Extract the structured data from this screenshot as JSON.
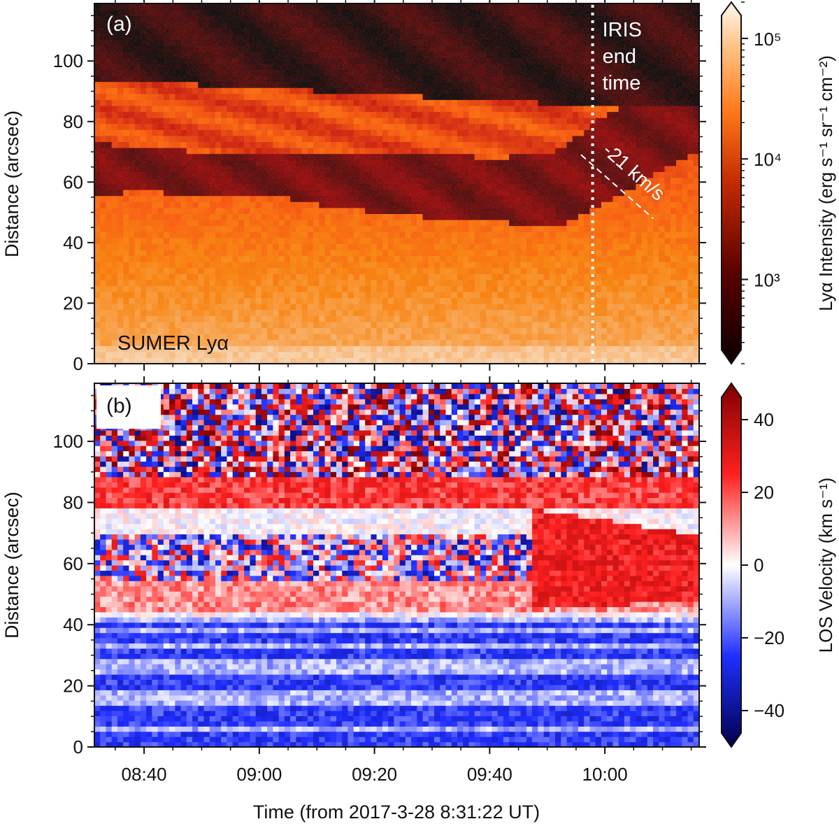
{
  "chart_data": [
    {
      "panel": "a",
      "type": "heatmap",
      "panel_label": "(a)",
      "inset_label": "SUMER Lyα",
      "ylabel": "Distance (arcsec)",
      "ylim": [
        0,
        119
      ],
      "yticks": [
        0,
        20,
        40,
        60,
        80,
        100
      ],
      "xlim_minutes": [
        0,
        105
      ],
      "x_ticks_minutes": [
        8.63,
        28.63,
        48.63,
        68.63,
        88.63
      ],
      "colorbar": {
        "label": "Lyα Intensity (erg s⁻¹ sr⁻¹ cm⁻²)",
        "scale": "log",
        "range": [
          200,
          200000
        ],
        "ticks": [
          {
            "value": 1000,
            "label": "10³"
          },
          {
            "value": 10000,
            "label": "10⁴"
          },
          {
            "value": 100000,
            "label": "10⁵"
          }
        ],
        "colormap": "gist_heat",
        "extend": "both"
      },
      "dark_band_boundaries": {
        "time_minutes": [
          0,
          10,
          20,
          30,
          40,
          50,
          60,
          70,
          80,
          90,
          100,
          105
        ],
        "upper_band_bottom": [
          94,
          93,
          92,
          91,
          90,
          89,
          88,
          87,
          86,
          86,
          86,
          86
        ],
        "mid_band_top": [
          73,
          71,
          70,
          70,
          70,
          70,
          69,
          68,
          70,
          84,
          86,
          86
        ],
        "mid_band_bottom": [
          56,
          57,
          55,
          56,
          52,
          50,
          48,
          47,
          45,
          55,
          65,
          70
        ]
      },
      "annotations": [
        {
          "type": "vline",
          "x_minutes": 86.5,
          "style": "dotted",
          "label_lines": [
            "IRIS",
            "end",
            "time"
          ]
        },
        {
          "type": "dashed-line",
          "from": {
            "x_minutes": 84.5,
            "y": 69
          },
          "to": {
            "x_minutes": 97,
            "y": 48
          },
          "label": "-21 km/s"
        }
      ]
    },
    {
      "panel": "b",
      "type": "heatmap",
      "panel_label": "(b)",
      "ylabel": "Distance (arcsec)",
      "xlabel": "Time (from 2017-3-28 8:31:22 UT)",
      "ylim": [
        0,
        119
      ],
      "yticks": [
        0,
        20,
        40,
        60,
        80,
        100
      ],
      "xlim_minutes": [
        0,
        105
      ],
      "x_ticks_minutes": [
        8.63,
        28.63,
        48.63,
        68.63,
        88.63
      ],
      "x_tick_labels": [
        "08:40",
        "09:00",
        "09:20",
        "09:40",
        "10:00"
      ],
      "colorbar": {
        "label": "LOS Velocity (km s⁻¹)",
        "scale": "linear",
        "range": [
          -50,
          50
        ],
        "ticks": [
          {
            "value": 40,
            "label": "40"
          },
          {
            "value": 20,
            "label": "20"
          },
          {
            "value": 0,
            "label": "0"
          },
          {
            "value": -20,
            "label": "−20"
          },
          {
            "value": -40,
            "label": "−40"
          }
        ],
        "colormap": "seismic",
        "extend": "both"
      },
      "features": {
        "noisy_region_y_above": 88,
        "noisy_midband_y": [
          55,
          70
        ],
        "redshift_band_y": [
          78,
          92
        ],
        "blueshift_rows_y": [
          2,
          4,
          8,
          12,
          20,
          22,
          30,
          36,
          40
        ],
        "red_flow_region": {
          "x_minutes": [
            76,
            105
          ],
          "y": [
            45,
            78
          ]
        }
      }
    }
  ]
}
